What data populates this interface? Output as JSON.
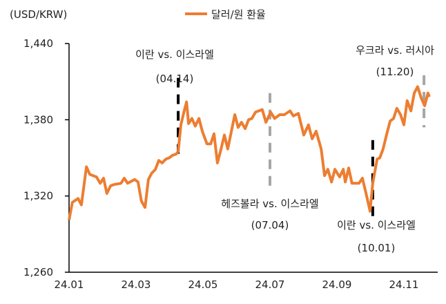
{
  "chart_data": {
    "type": "line",
    "title": "",
    "ylabel": "(USD/KRW)",
    "xlabel": "",
    "ylim": [
      1260,
      1440
    ],
    "yticks": [
      1260,
      1320,
      1380,
      1440
    ],
    "ytick_labels": [
      "1,260",
      "1,320",
      "1,380",
      "1,440"
    ],
    "x_unit": "months since 24.01",
    "xlim": [
      0,
      11
    ],
    "xticks": [
      0,
      2,
      4,
      6,
      8,
      10
    ],
    "xtick_labels": [
      "24.01",
      "24.03",
      "24.05",
      "24.07",
      "24.09",
      "24.11"
    ],
    "grid": false,
    "legend": {
      "position": "top-center",
      "entries": [
        "달러/원 환율"
      ]
    },
    "series": [
      {
        "name": "달러/원 환율",
        "color": "#ED7D31",
        "points": [
          [
            0,
            1301
          ],
          [
            0.1,
            1315
          ],
          [
            0.27,
            1318
          ],
          [
            0.37,
            1313
          ],
          [
            0.52,
            1343
          ],
          [
            0.62,
            1337
          ],
          [
            0.82,
            1335
          ],
          [
            0.93,
            1330
          ],
          [
            1.03,
            1334
          ],
          [
            1.13,
            1322
          ],
          [
            1.24,
            1328
          ],
          [
            1.34,
            1329
          ],
          [
            1.55,
            1330
          ],
          [
            1.65,
            1334
          ],
          [
            1.75,
            1330
          ],
          [
            1.96,
            1333
          ],
          [
            2.06,
            1331
          ],
          [
            2.16,
            1316
          ],
          [
            2.27,
            1311
          ],
          [
            2.37,
            1333
          ],
          [
            2.47,
            1338
          ],
          [
            2.58,
            1341
          ],
          [
            2.68,
            1348
          ],
          [
            2.78,
            1346
          ],
          [
            2.89,
            1349
          ],
          [
            2.99,
            1350
          ],
          [
            3.09,
            1352
          ],
          [
            3.2,
            1353
          ],
          [
            3.26,
            1355
          ],
          [
            3.34,
            1376
          ],
          [
            3.44,
            1387
          ],
          [
            3.51,
            1394
          ],
          [
            3.57,
            1377
          ],
          [
            3.67,
            1381
          ],
          [
            3.77,
            1375
          ],
          [
            3.88,
            1381
          ],
          [
            3.98,
            1371
          ],
          [
            4.12,
            1361
          ],
          [
            4.23,
            1361
          ],
          [
            4.33,
            1369
          ],
          [
            4.43,
            1346
          ],
          [
            4.54,
            1357
          ],
          [
            4.64,
            1368
          ],
          [
            4.74,
            1357
          ],
          [
            4.95,
            1384
          ],
          [
            5.05,
            1374
          ],
          [
            5.15,
            1378
          ],
          [
            5.26,
            1373
          ],
          [
            5.36,
            1380
          ],
          [
            5.46,
            1381
          ],
          [
            5.57,
            1386
          ],
          [
            5.77,
            1388
          ],
          [
            5.88,
            1378
          ],
          [
            6.02,
            1386
          ],
          [
            6.14,
            1381
          ],
          [
            6.29,
            1384
          ],
          [
            6.43,
            1384
          ],
          [
            6.6,
            1387
          ],
          [
            6.7,
            1383
          ],
          [
            6.85,
            1385
          ],
          [
            7.01,
            1368
          ],
          [
            7.15,
            1376
          ],
          [
            7.26,
            1365
          ],
          [
            7.38,
            1371
          ],
          [
            7.53,
            1357
          ],
          [
            7.63,
            1336
          ],
          [
            7.73,
            1341
          ],
          [
            7.84,
            1331
          ],
          [
            7.94,
            1341
          ],
          [
            8.08,
            1335
          ],
          [
            8.19,
            1341
          ],
          [
            8.25,
            1331
          ],
          [
            8.35,
            1342
          ],
          [
            8.45,
            1330
          ],
          [
            8.66,
            1330
          ],
          [
            8.76,
            1334
          ],
          [
            8.87,
            1322
          ],
          [
            8.99,
            1308
          ],
          [
            9.07,
            1330
          ],
          [
            9.2,
            1349
          ],
          [
            9.28,
            1350
          ],
          [
            9.38,
            1357
          ],
          [
            9.48,
            1368
          ],
          [
            9.59,
            1379
          ],
          [
            9.69,
            1381
          ],
          [
            9.79,
            1389
          ],
          [
            9.9,
            1384
          ],
          [
            10.0,
            1376
          ],
          [
            10.1,
            1395
          ],
          [
            10.21,
            1387
          ],
          [
            10.31,
            1401
          ],
          [
            10.41,
            1406
          ],
          [
            10.52,
            1397
          ],
          [
            10.62,
            1391
          ],
          [
            10.72,
            1401
          ],
          [
            10.76,
            1398
          ]
        ]
      }
    ],
    "annotations": [
      {
        "label": "이란 vs. 이스라엘",
        "date": "(04.14)",
        "x": 3.26,
        "color": "#000000",
        "range": [
          1353,
          1413
        ]
      },
      {
        "label": "헤즈볼라 vs. 이스라엘",
        "date": "(07.04)",
        "x": 6.0,
        "color": "#A6A6A6",
        "range": [
          1324,
          1401
        ]
      },
      {
        "label": "이란 vs. 이스라엘",
        "date": "(10.01)",
        "x": 9.07,
        "color": "#000000",
        "range": [
          1301,
          1364
        ]
      },
      {
        "label": "우크라 vs. 러시아",
        "date": "(11.20)",
        "x": 10.6,
        "color": "#A6A6A6",
        "range": [
          1374,
          1415
        ]
      }
    ]
  }
}
